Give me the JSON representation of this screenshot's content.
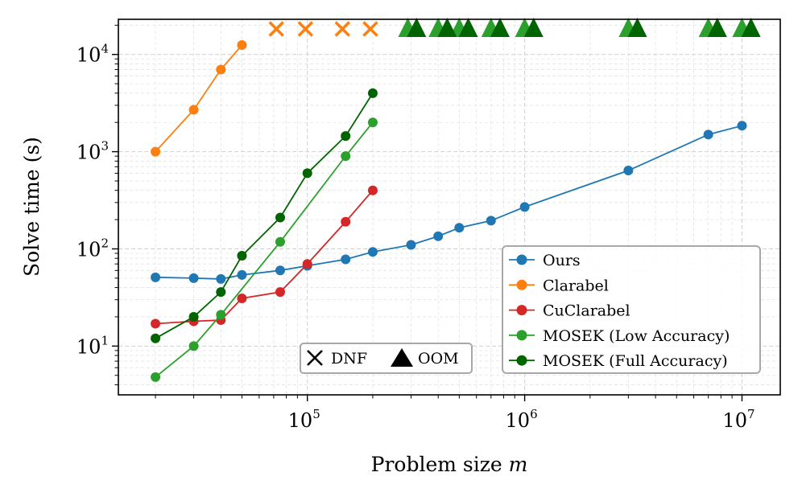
{
  "chart_data": {
    "type": "line",
    "xscale": "log",
    "yscale": "log",
    "xlim": [
      13500,
      15000000
    ],
    "ylim": [
      3.15,
      23000
    ],
    "xlabel": "Problem size",
    "xlabel_var": "m",
    "ylabel": "Solve time (s)",
    "grid": true,
    "x_ticks": [
      {
        "value": 100000,
        "base": "10",
        "exp": "5"
      },
      {
        "value": 1000000,
        "base": "10",
        "exp": "6"
      },
      {
        "value": 10000000,
        "base": "10",
        "exp": "7"
      }
    ],
    "y_ticks": [
      {
        "value": 10,
        "base": "10",
        "exp": "1"
      },
      {
        "value": 100,
        "base": "10",
        "exp": "2"
      },
      {
        "value": 1000,
        "base": "10",
        "exp": "3"
      },
      {
        "value": 10000,
        "base": "10",
        "exp": "4"
      }
    ],
    "series": [
      {
        "name": "Ours",
        "color": "#1f77b4",
        "x": [
          20000,
          30000,
          40000,
          50000,
          75000,
          100000,
          150000,
          200000,
          300000,
          400000,
          500000,
          700000,
          1000000,
          3000000,
          7000000,
          10000000
        ],
        "y": [
          51,
          50,
          49,
          54,
          60,
          67,
          78,
          93,
          110,
          135,
          165,
          195,
          270,
          640,
          1500,
          1850
        ]
      },
      {
        "name": "Clarabel",
        "color": "#ff7f0e",
        "x": [
          20000,
          30000,
          40000,
          50000
        ],
        "y": [
          1000,
          2700,
          7000,
          12500
        ],
        "dnf_x": [
          72000,
          98000,
          145000,
          195000
        ]
      },
      {
        "name": "CuClarabel",
        "color": "#d62728",
        "x": [
          20000,
          30000,
          40000,
          50000,
          75000,
          100000,
          150000,
          200000
        ],
        "y": [
          17,
          18,
          18.5,
          31,
          36,
          70,
          190,
          400
        ]
      },
      {
        "name": "MOSEK (Low Accuracy)",
        "color": "#2ca02c",
        "x": [
          20000,
          30000,
          40000,
          75000,
          150000,
          200000
        ],
        "y": [
          4.8,
          10,
          21,
          118,
          900,
          2000
        ],
        "oom_x": [
          290000,
          400000,
          500000,
          700000,
          1000000,
          3000000,
          7000000,
          10000000
        ]
      },
      {
        "name": "MOSEK (Full Accuracy)",
        "color": "#006400",
        "x": [
          20000,
          30000,
          40000,
          50000,
          75000,
          100000,
          150000,
          200000
        ],
        "y": [
          12,
          20,
          36,
          85,
          210,
          600,
          1450,
          4000
        ],
        "oom_x": [
          318000,
          440000,
          550000,
          770000,
          1100000,
          3300000,
          7700000,
          11000000
        ]
      }
    ],
    "legend": {
      "location": "lower-right",
      "entries": [
        "Ours",
        "Clarabel",
        "CuClarabel",
        "MOSEK (Low Accuracy)",
        "MOSEK (Full Accuracy)"
      ]
    },
    "marker_legend": {
      "location": "bottom-center",
      "dnf_label": "DNF",
      "oom_label": "OOM"
    }
  }
}
